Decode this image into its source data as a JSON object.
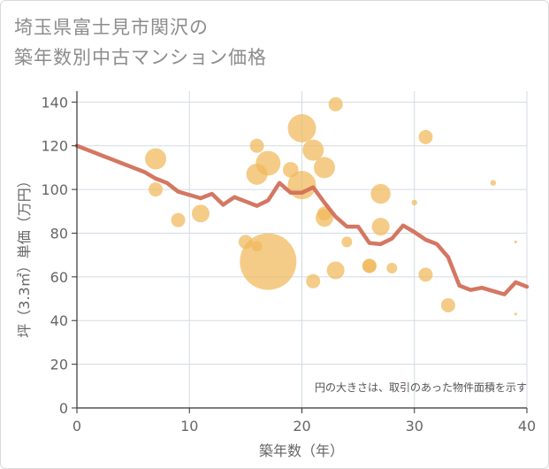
{
  "chart_data": {
    "type": "scatter",
    "title_line1": "埼玉県富士見市関沢の",
    "title_line2": "築年数別中古マンション価格",
    "xlabel": "築年数（年）",
    "ylabel": "坪（3.3㎡）単価（万円）",
    "note": "円の大きさは、取引のあった物件面積を示す",
    "xlim": [
      0,
      40
    ],
    "ylim": [
      0,
      145
    ],
    "xticks": [
      0,
      10,
      20,
      30,
      40
    ],
    "yticks": [
      0,
      20,
      40,
      60,
      80,
      100,
      120,
      140
    ],
    "grid": true,
    "bubble_color": "#f0b95a",
    "line_color": "#d2705a",
    "points": [
      {
        "x": 7,
        "y": 114,
        "size": 3
      },
      {
        "x": 7,
        "y": 100,
        "size": 2
      },
      {
        "x": 9,
        "y": 86,
        "size": 2
      },
      {
        "x": 11,
        "y": 89,
        "size": 2.5
      },
      {
        "x": 15,
        "y": 76,
        "size": 2
      },
      {
        "x": 16,
        "y": 120,
        "size": 2
      },
      {
        "x": 16,
        "y": 107,
        "size": 3
      },
      {
        "x": 16,
        "y": 74,
        "size": 1.5
      },
      {
        "x": 17,
        "y": 112,
        "size": 3.5
      },
      {
        "x": 17,
        "y": 67,
        "size": 8
      },
      {
        "x": 19,
        "y": 109,
        "size": 2.2
      },
      {
        "x": 20,
        "y": 128,
        "size": 4
      },
      {
        "x": 20,
        "y": 102,
        "size": 4
      },
      {
        "x": 21,
        "y": 118,
        "size": 3
      },
      {
        "x": 21,
        "y": 58,
        "size": 2
      },
      {
        "x": 22,
        "y": 110,
        "size": 3
      },
      {
        "x": 22,
        "y": 89,
        "size": 2
      },
      {
        "x": 22,
        "y": 87,
        "size": 2.5
      },
      {
        "x": 23,
        "y": 139,
        "size": 2
      },
      {
        "x": 23,
        "y": 63,
        "size": 2.5
      },
      {
        "x": 24,
        "y": 76,
        "size": 1.5
      },
      {
        "x": 26,
        "y": 65,
        "size": 2
      },
      {
        "x": 26,
        "y": 65,
        "size": 2
      },
      {
        "x": 27,
        "y": 98,
        "size": 2.8
      },
      {
        "x": 27,
        "y": 83,
        "size": 2.5
      },
      {
        "x": 28,
        "y": 64,
        "size": 1.5
      },
      {
        "x": 30,
        "y": 94,
        "size": 0.8
      },
      {
        "x": 31,
        "y": 124,
        "size": 2
      },
      {
        "x": 31,
        "y": 61,
        "size": 2
      },
      {
        "x": 33,
        "y": 47,
        "size": 2
      },
      {
        "x": 37,
        "y": 103,
        "size": 0.8
      },
      {
        "x": 39,
        "y": 76,
        "size": 0.4
      },
      {
        "x": 39,
        "y": 43,
        "size": 0.4
      }
    ],
    "trend": {
      "x": [
        0,
        1,
        2,
        3,
        4,
        5,
        6,
        7,
        8,
        9,
        10,
        11,
        12,
        13,
        14,
        15,
        16,
        17,
        18,
        19,
        20,
        21,
        22,
        23,
        24,
        25,
        26,
        27,
        28,
        29,
        30,
        31,
        32,
        33,
        34,
        35,
        36,
        37,
        38,
        39,
        40
      ],
      "y": [
        120,
        118,
        116,
        114,
        112,
        110,
        108,
        105,
        103,
        99,
        97.5,
        96,
        98,
        93,
        96.5,
        94.5,
        92.5,
        95,
        103,
        98.5,
        98.5,
        101,
        94,
        87.5,
        83,
        83,
        75.5,
        75,
        77.5,
        83.5,
        80.5,
        77,
        75,
        69,
        56,
        54,
        55,
        53.5,
        52,
        57.5,
        55.5
      ]
    }
  }
}
